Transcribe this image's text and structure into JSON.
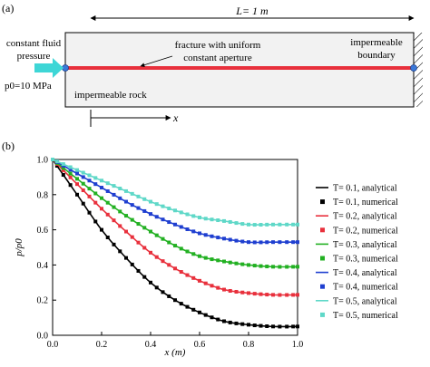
{
  "panel_a": {
    "label": "(a)",
    "length_label": "L= 1 m",
    "inlet_label_line1": "constant fluid",
    "inlet_label_line2": "pressure",
    "pressure_label": "p0=10 MPa",
    "fracture_label_line1": "fracture with uniform",
    "fracture_label_line2": "constant aperture",
    "boundary_label_line1": "impermeable",
    "boundary_label_line2": "boundary",
    "rock_label": "impermeable rock",
    "x_axis_label": "x",
    "colors": {
      "fracture": "#e8303c",
      "inlet_arrow": "#3ed6d6",
      "node": "#3a78d8",
      "box_fill": "#f2f2f2"
    }
  },
  "panel_b": {
    "label": "(b)"
  },
  "chart_data": {
    "type": "line",
    "xlabel": "x (m)",
    "ylabel": "p/p0",
    "xlim": [
      0.0,
      1.0
    ],
    "ylim": [
      0.0,
      1.0
    ],
    "xticks": [
      "0.0",
      "0.2",
      "0.4",
      "0.6",
      "0.8",
      "1.0"
    ],
    "yticks": [
      "0.0",
      "0.2",
      "0.4",
      "0.6",
      "0.8",
      "1.0"
    ],
    "legend_position": "right-outside",
    "series": [
      {
        "name": "T= 0.1, analytical",
        "style": "line",
        "color": "#000000",
        "x": [
          0.0,
          0.1,
          0.2,
          0.3,
          0.4,
          0.5,
          0.6,
          0.7,
          0.8,
          0.9,
          1.0
        ],
        "values": [
          1.0,
          0.8,
          0.6,
          0.44,
          0.3,
          0.2,
          0.13,
          0.08,
          0.06,
          0.05,
          0.05
        ]
      },
      {
        "name": "T= 0.1, numerical",
        "style": "marker",
        "color": "#000000",
        "x": [
          0.0,
          0.1,
          0.2,
          0.3,
          0.4,
          0.5,
          0.6,
          0.7,
          0.8,
          0.9,
          1.0
        ],
        "values": [
          1.0,
          0.8,
          0.6,
          0.44,
          0.3,
          0.2,
          0.13,
          0.08,
          0.06,
          0.05,
          0.05
        ]
      },
      {
        "name": "T= 0.2, analytical",
        "style": "line",
        "color": "#e8303c",
        "x": [
          0.0,
          0.1,
          0.2,
          0.3,
          0.4,
          0.5,
          0.6,
          0.7,
          0.8,
          0.9,
          1.0
        ],
        "values": [
          1.0,
          0.86,
          0.72,
          0.59,
          0.47,
          0.38,
          0.31,
          0.26,
          0.24,
          0.23,
          0.23
        ]
      },
      {
        "name": "T= 0.2, numerical",
        "style": "marker",
        "color": "#e8303c",
        "x": [
          0.0,
          0.1,
          0.2,
          0.3,
          0.4,
          0.5,
          0.6,
          0.7,
          0.8,
          0.9,
          1.0
        ],
        "values": [
          1.0,
          0.86,
          0.72,
          0.59,
          0.47,
          0.38,
          0.31,
          0.26,
          0.24,
          0.23,
          0.23
        ]
      },
      {
        "name": "T= 0.3, analytical",
        "style": "line",
        "color": "#22b022",
        "x": [
          0.0,
          0.1,
          0.2,
          0.3,
          0.4,
          0.5,
          0.6,
          0.7,
          0.8,
          0.9,
          1.0
        ],
        "values": [
          1.0,
          0.89,
          0.78,
          0.68,
          0.59,
          0.51,
          0.45,
          0.42,
          0.4,
          0.39,
          0.39
        ]
      },
      {
        "name": "T= 0.3, numerical",
        "style": "marker",
        "color": "#22b022",
        "x": [
          0.0,
          0.1,
          0.2,
          0.3,
          0.4,
          0.5,
          0.6,
          0.7,
          0.8,
          0.9,
          1.0
        ],
        "values": [
          1.0,
          0.89,
          0.78,
          0.68,
          0.59,
          0.51,
          0.45,
          0.42,
          0.4,
          0.39,
          0.39
        ]
      },
      {
        "name": "T= 0.4, analytical",
        "style": "line",
        "color": "#1f3fd0",
        "x": [
          0.0,
          0.1,
          0.2,
          0.3,
          0.4,
          0.5,
          0.6,
          0.7,
          0.8,
          0.9,
          1.0
        ],
        "values": [
          1.0,
          0.92,
          0.84,
          0.76,
          0.69,
          0.63,
          0.58,
          0.55,
          0.53,
          0.53,
          0.53
        ]
      },
      {
        "name": "T= 0.4, numerical",
        "style": "marker",
        "color": "#1f3fd0",
        "x": [
          0.0,
          0.1,
          0.2,
          0.3,
          0.4,
          0.5,
          0.6,
          0.7,
          0.8,
          0.9,
          1.0
        ],
        "values": [
          1.0,
          0.92,
          0.84,
          0.76,
          0.69,
          0.63,
          0.58,
          0.55,
          0.53,
          0.53,
          0.53
        ]
      },
      {
        "name": "T= 0.5, analytical",
        "style": "line",
        "color": "#5fd8c8",
        "x": [
          0.0,
          0.1,
          0.2,
          0.3,
          0.4,
          0.5,
          0.6,
          0.7,
          0.8,
          0.9,
          1.0
        ],
        "values": [
          1.0,
          0.94,
          0.88,
          0.82,
          0.76,
          0.71,
          0.67,
          0.65,
          0.63,
          0.63,
          0.63
        ]
      },
      {
        "name": "T= 0.5, numerical",
        "style": "marker",
        "color": "#5fd8c8",
        "x": [
          0.0,
          0.1,
          0.2,
          0.3,
          0.4,
          0.5,
          0.6,
          0.7,
          0.8,
          0.9,
          1.0
        ],
        "values": [
          1.0,
          0.94,
          0.88,
          0.82,
          0.76,
          0.71,
          0.67,
          0.65,
          0.63,
          0.63,
          0.63
        ]
      }
    ]
  }
}
